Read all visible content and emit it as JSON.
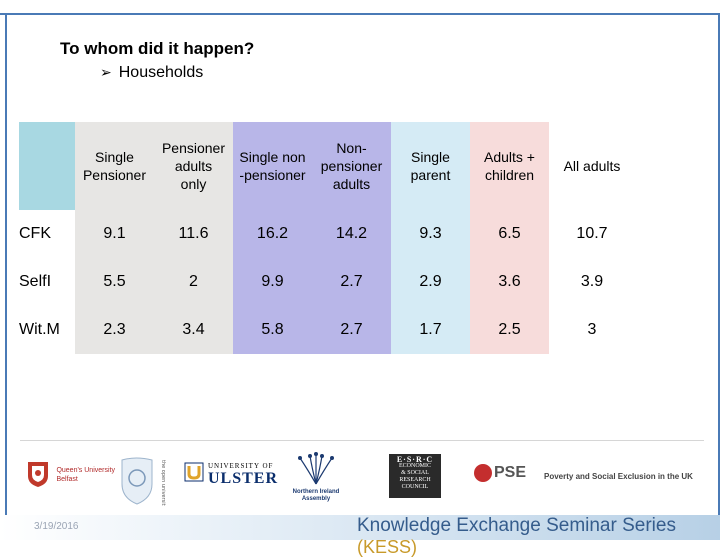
{
  "title": "To whom did it happen?",
  "bullet": "Households",
  "table": {
    "headers": [
      [
        "Single",
        "Pensioner"
      ],
      [
        "Pensioner",
        "adults",
        "only"
      ],
      [
        "Single non",
        "-pensioner"
      ],
      [
        "Non-",
        "pensioner",
        "adults"
      ],
      [
        "Single",
        "parent"
      ],
      [
        "Adults +",
        "children"
      ],
      [
        "All adults"
      ]
    ],
    "rows": [
      {
        "label": "CFK",
        "values": [
          "9.1",
          "11.6",
          "16.2",
          "14.2",
          "9.3",
          "6.5",
          "10.7"
        ]
      },
      {
        "label": "SelfI",
        "values": [
          "5.5",
          "2",
          "9.9",
          "2.7",
          "2.9",
          "3.6",
          "3.9"
        ]
      },
      {
        "label": "Wit.M",
        "values": [
          "2.3",
          "3.4",
          "5.8",
          "2.7",
          "1.7",
          "2.5",
          "3"
        ]
      }
    ]
  },
  "logos": {
    "qub": [
      "Queen's University",
      "Belfast"
    ],
    "ulster": [
      "UNIVERSITY OF",
      "ULSTER"
    ],
    "nia": [
      "Northern Ireland",
      "Assembly"
    ],
    "esrc": [
      "E·S·R·C",
      "ECONOMIC",
      "& SOCIAL",
      "RESEARCH",
      "COUNCIL"
    ],
    "pse": "PSE",
    "pse_text": "Poverty and Social Exclusion in the UK"
  },
  "footer": {
    "date": "3/19/2016",
    "series_title": "Knowledge Exchange Seminar Series",
    "series_abbr": "(KESS)"
  },
  "colors": {
    "frame": "#4a7ab6",
    "grey": "#e7e6e4",
    "purple": "#b8b6e8",
    "light_blue": "#d5ebf5",
    "pink": "#f7dcdb",
    "teal": "#a8d8e2"
  }
}
